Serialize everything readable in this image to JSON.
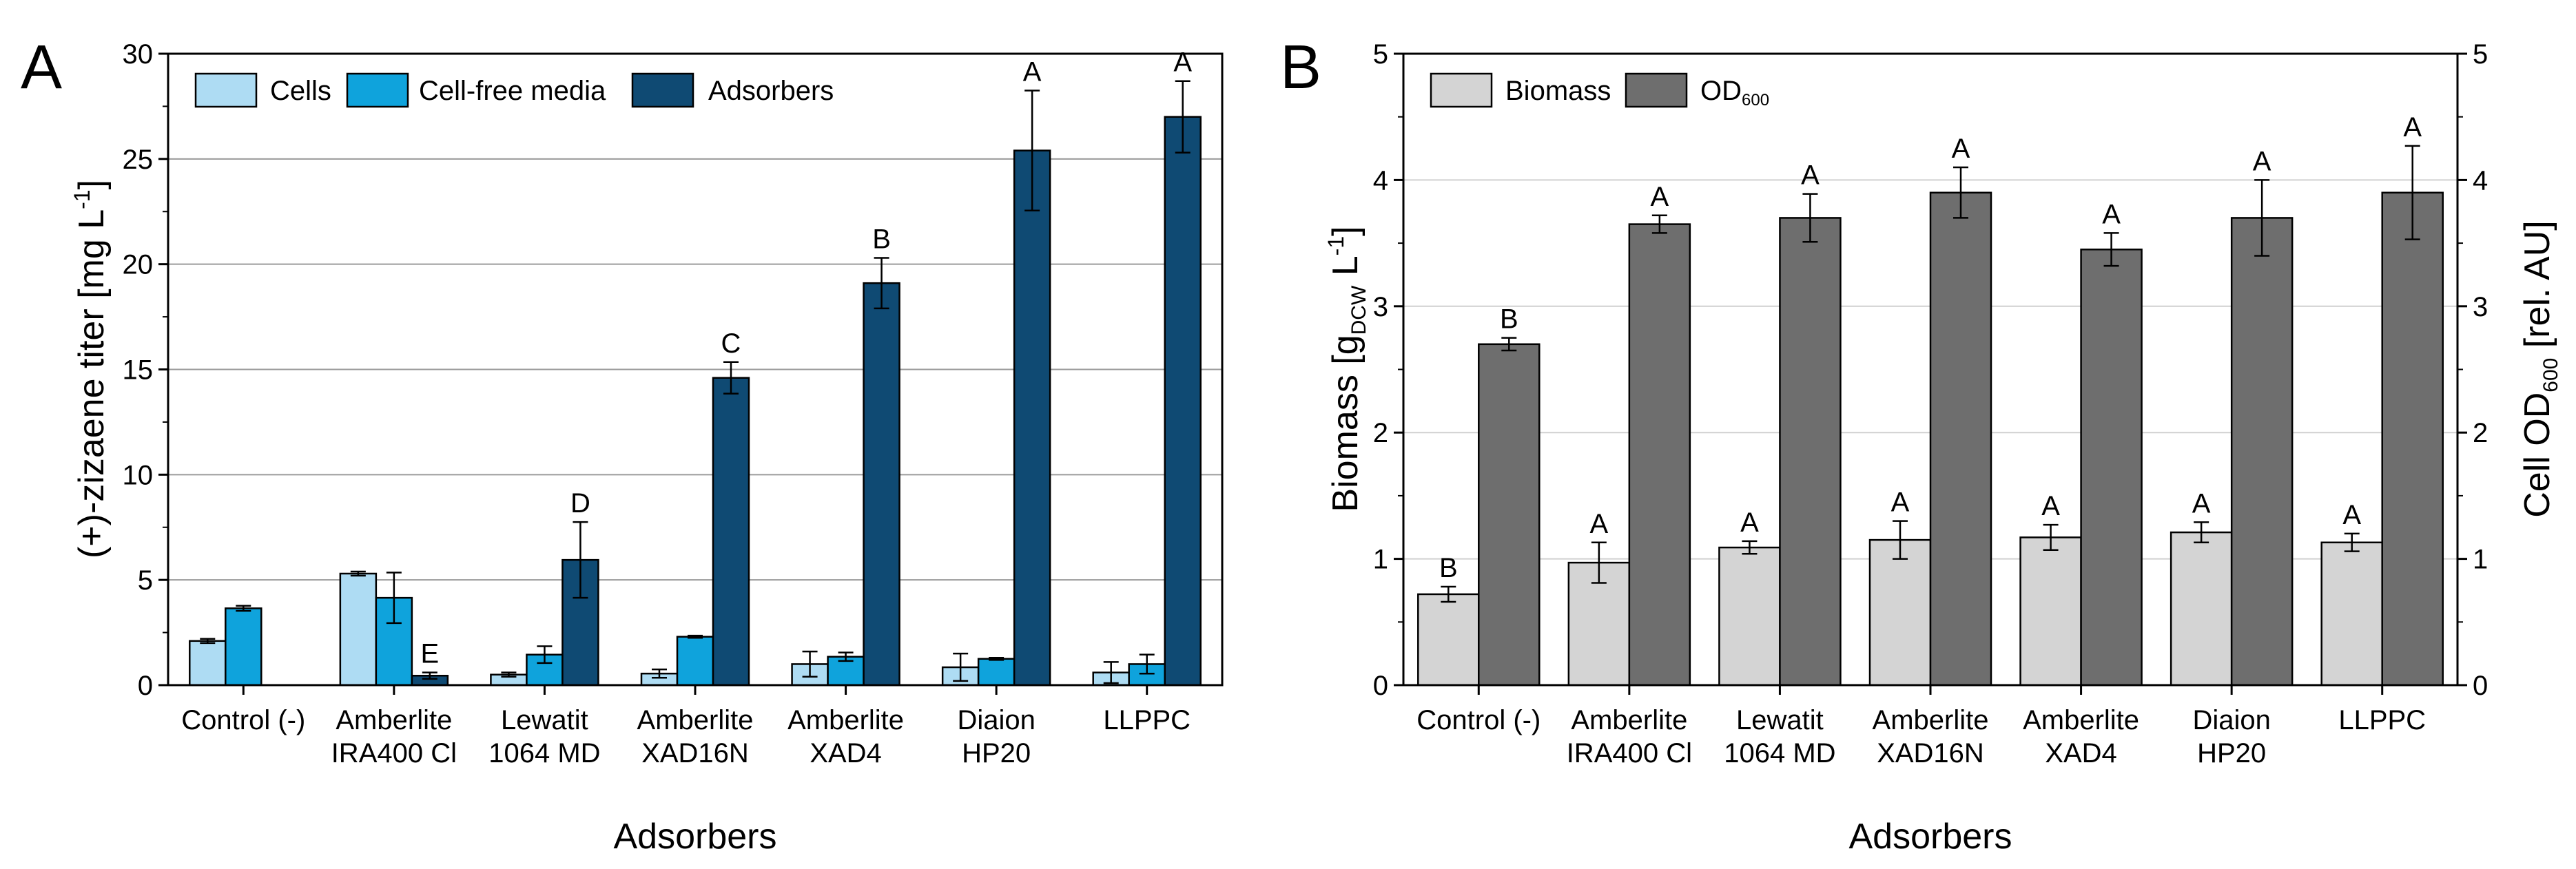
{
  "chart_data": [
    {
      "panel": "A",
      "type": "bar",
      "categories": [
        "Control (-)",
        "Amberlite IRA400 Cl",
        "Lewatit 1064 MD",
        "Amberlite XAD16N",
        "Amberlite XAD4",
        "Diaion HP20",
        "LLPPC"
      ],
      "category_lines": [
        [
          "Control (-)"
        ],
        [
          "Amberlite",
          "IRA400 Cl"
        ],
        [
          "Lewatit",
          "1064 MD"
        ],
        [
          "Amberlite",
          "XAD16N"
        ],
        [
          "Amberlite",
          "XAD4"
        ],
        [
          "Diaion",
          "HP20"
        ],
        [
          "LLPPC"
        ]
      ],
      "xlabel": "Adsorbers",
      "ylabel": "(+)-zizaene titer [mg L",
      "ylabel_sup": "-1",
      "ylabel_end": "]",
      "ylim": [
        0,
        30
      ],
      "yticks": [
        0,
        5,
        10,
        15,
        20,
        25,
        30
      ],
      "grid": true,
      "legend_position": "top-left",
      "series": [
        {
          "name": "Cells",
          "color": "#aedcf3",
          "values": [
            2.1,
            5.3,
            0.5,
            0.55,
            1.0,
            0.85,
            0.6
          ],
          "errors": [
            0.1,
            0.1,
            0.1,
            0.2,
            0.6,
            0.65,
            0.5
          ]
        },
        {
          "name": "Cell-free media",
          "color": "#0fa3dc",
          "values": [
            3.65,
            4.15,
            1.45,
            2.3,
            1.35,
            1.25,
            1.0
          ],
          "errors": [
            0.12,
            1.2,
            0.4,
            0.05,
            0.2,
            0.05,
            0.45
          ]
        },
        {
          "name": "Adsorbers",
          "color": "#0f4a73",
          "values": [
            null,
            0.45,
            5.95,
            14.6,
            19.1,
            25.4,
            27.0
          ],
          "errors": [
            null,
            0.15,
            1.8,
            0.75,
            1.2,
            2.85,
            1.7
          ]
        }
      ],
      "annotations": [
        {
          "category": "Amberlite IRA400 Cl",
          "series": "Adsorbers",
          "label": "E"
        },
        {
          "category": "Lewatit 1064 MD",
          "series": "Adsorbers",
          "label": "D"
        },
        {
          "category": "Amberlite XAD16N",
          "series": "Adsorbers",
          "label": "C"
        },
        {
          "category": "Amberlite XAD4",
          "series": "Adsorbers",
          "label": "B"
        },
        {
          "category": "Diaion HP20",
          "series": "Adsorbers",
          "label": "A"
        },
        {
          "category": "LLPPC",
          "series": "Adsorbers",
          "label": "A"
        }
      ]
    },
    {
      "panel": "B",
      "type": "bar",
      "categories": [
        "Control (-)",
        "Amberlite IRA400 Cl",
        "Lewatit 1064 MD",
        "Amberlite XAD16N",
        "Amberlite XAD4",
        "Diaion HP20",
        "LLPPC"
      ],
      "category_lines": [
        [
          "Control (-)"
        ],
        [
          "Amberlite",
          "IRA400 Cl"
        ],
        [
          "Lewatit",
          "1064 MD"
        ],
        [
          "Amberlite",
          "XAD16N"
        ],
        [
          "Amberlite",
          "XAD4"
        ],
        [
          "Diaion",
          "HP20"
        ],
        [
          "LLPPC"
        ]
      ],
      "xlabel": "Adsorbers",
      "ylabel_left": "Biomass  [g",
      "ylabel_left_sub": "DCW",
      "ylabel_left_mid": " L",
      "ylabel_left_sup": "-1",
      "ylabel_left_end": "]",
      "ylabel_right": "Cell OD",
      "ylabel_right_sub": "600",
      "ylabel_right_end": " [rel. AU]",
      "ylim_left": [
        0,
        5
      ],
      "ylim_right": [
        0,
        5
      ],
      "yticks": [
        0,
        1,
        2,
        3,
        4,
        5
      ],
      "grid": true,
      "legend_position": "top-left",
      "series": [
        {
          "name": "Biomass",
          "axis": "left",
          "color": "#d4d4d4",
          "values": [
            0.72,
            0.97,
            1.09,
            1.15,
            1.17,
            1.21,
            1.13
          ],
          "errors": [
            0.06,
            0.16,
            0.05,
            0.15,
            0.1,
            0.08,
            0.07
          ],
          "labels": [
            "B",
            "A",
            "A",
            "A",
            "A",
            "A",
            "A"
          ]
        },
        {
          "name": "OD",
          "name_sub": "600",
          "axis": "right",
          "color": "#6e6e6e",
          "values": [
            2.7,
            3.65,
            3.7,
            3.9,
            3.45,
            3.7,
            3.9
          ],
          "errors": [
            0.05,
            0.07,
            0.19,
            0.2,
            0.13,
            0.3,
            0.37
          ],
          "labels": [
            "B",
            "A",
            "A",
            "A",
            "A",
            "A",
            "A"
          ]
        }
      ]
    }
  ],
  "panel_labels": {
    "a": "A",
    "b": "B"
  }
}
